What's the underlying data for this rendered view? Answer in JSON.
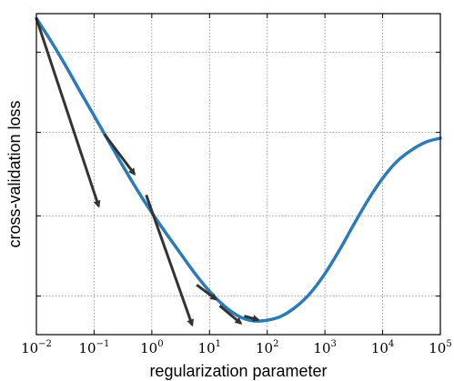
{
  "chart_data": {
    "type": "line",
    "title": "",
    "xlabel": "regularization parameter",
    "ylabel": "cross-validation loss",
    "x_scale": "log",
    "xlim": [
      0.01,
      100000
    ],
    "ylim": [
      0,
      1
    ],
    "grid": true,
    "x_ticks": [
      {
        "value": 0.01,
        "base": "10",
        "exp": "−2"
      },
      {
        "value": 0.1,
        "base": "10",
        "exp": "−1"
      },
      {
        "value": 1,
        "base": "10",
        "exp": "0"
      },
      {
        "value": 10,
        "base": "10",
        "exp": "1"
      },
      {
        "value": 100,
        "base": "10",
        "exp": "2"
      },
      {
        "value": 1000,
        "base": "10",
        "exp": "3"
      },
      {
        "value": 10000,
        "base": "10",
        "exp": "4"
      },
      {
        "value": 100000,
        "base": "10",
        "exp": "5"
      }
    ],
    "y_ticks": [
      0.12,
      0.37,
      0.63,
      0.88
    ],
    "series": [
      {
        "color": "#2b7bba",
        "x": [
          0.01,
          0.0178,
          0.0316,
          0.0562,
          0.1,
          0.178,
          0.316,
          0.562,
          1,
          1.78,
          3.16,
          5.62,
          10,
          17.8,
          31.6,
          56.2,
          100,
          178,
          316,
          562,
          1000,
          1780,
          3160,
          5620,
          10000,
          17800,
          31600,
          56200,
          100000
        ],
        "y": [
          0.985,
          0.915,
          0.84,
          0.76,
          0.682,
          0.603,
          0.525,
          0.45,
          0.38,
          0.315,
          0.252,
          0.19,
          0.135,
          0.09,
          0.058,
          0.043,
          0.045,
          0.058,
          0.087,
          0.13,
          0.19,
          0.263,
          0.343,
          0.42,
          0.487,
          0.54,
          0.575,
          0.6,
          0.612
        ]
      }
    ],
    "arrows": [
      {
        "x0": 0.01,
        "y0": 0.985,
        "x1": 0.12,
        "y1": 0.4
      },
      {
        "x0": 0.15,
        "y0": 0.625,
        "x1": 0.5,
        "y1": 0.5
      },
      {
        "x0": 0.8,
        "y0": 0.435,
        "x1": 5,
        "y1": 0.03
      },
      {
        "x0": 6,
        "y0": 0.155,
        "x1": 13,
        "y1": 0.11
      },
      {
        "x0": 15,
        "y0": 0.09,
        "x1": 35,
        "y1": 0.035
      },
      {
        "x0": 40,
        "y0": 0.058,
        "x1": 70,
        "y1": 0.046
      }
    ],
    "arrow_color": "#333333"
  }
}
